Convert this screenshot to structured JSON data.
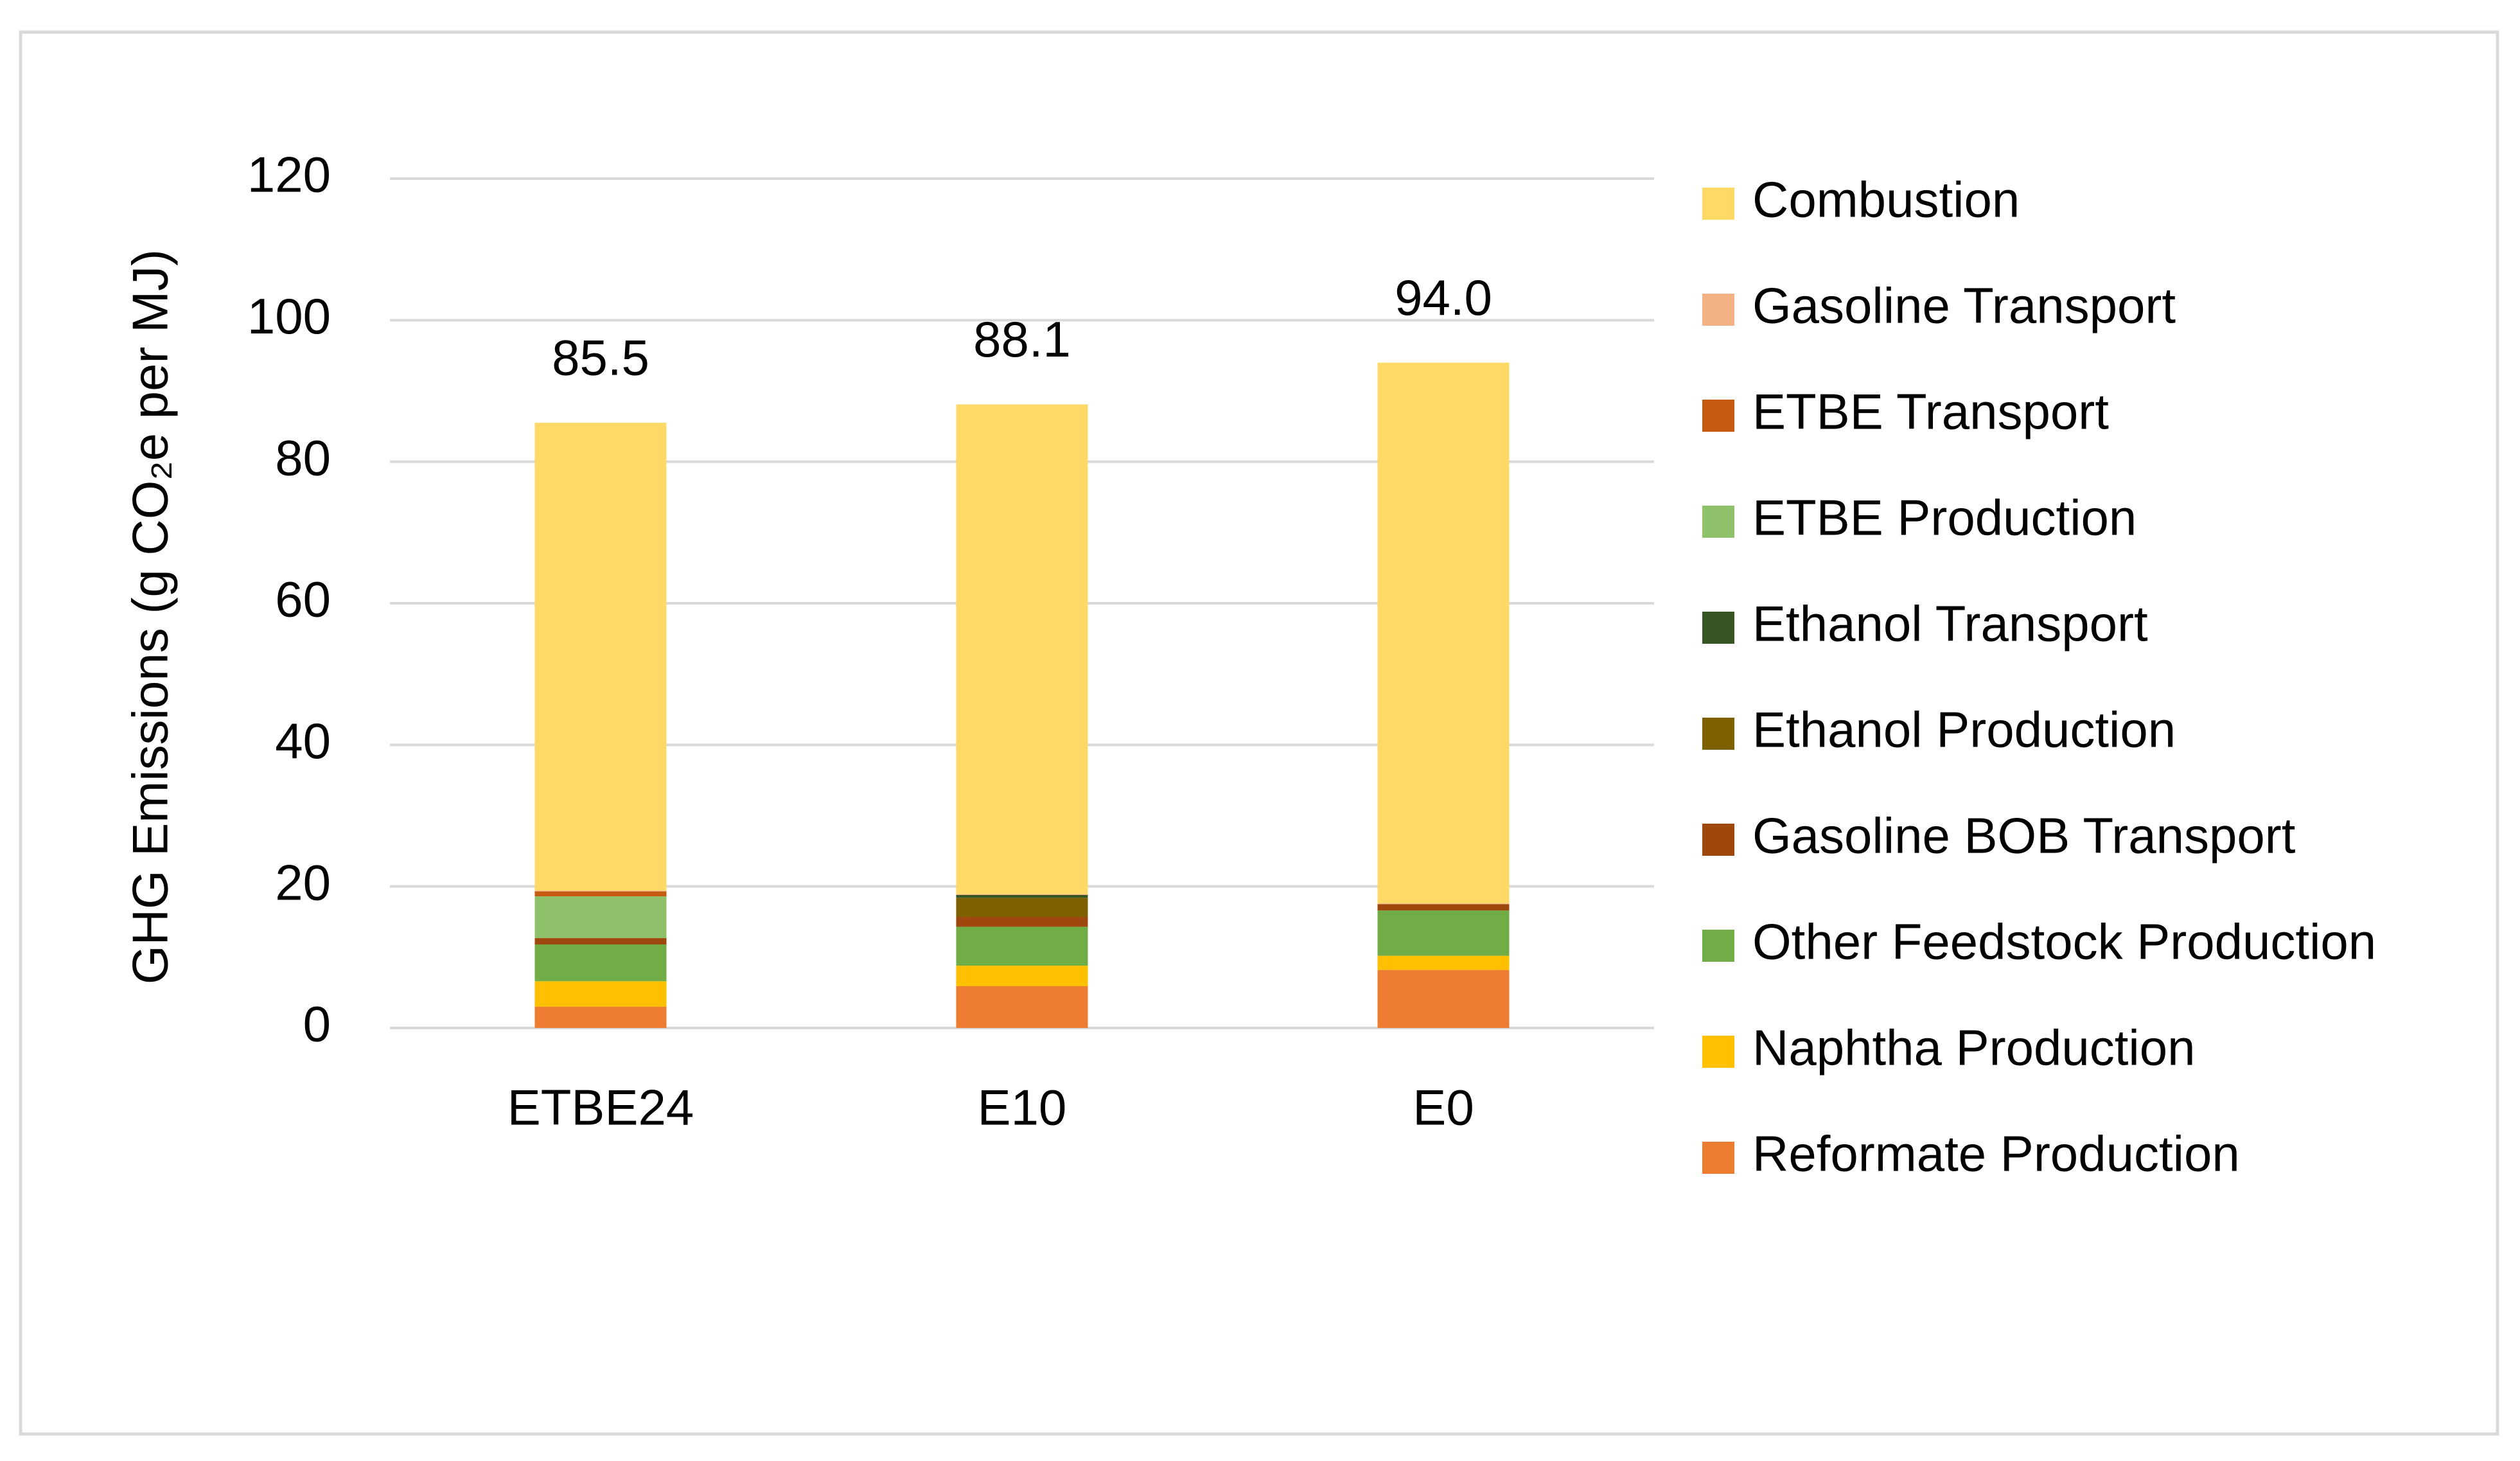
{
  "chart_data": {
    "type": "stacked_bar",
    "y_label": "GHG Emissions (g CO₂e per MJ)",
    "categories": [
      "ETBE24",
      "E10",
      "E0"
    ],
    "series": [
      {
        "name": "Reformate Production",
        "color": "#ED7D31",
        "values": [
          3.0,
          5.9,
          8.2
        ]
      },
      {
        "name": "Naphtha Production",
        "color": "#FFC000",
        "values": [
          3.6,
          2.9,
          2.0
        ]
      },
      {
        "name": "Other Feedstock Production",
        "color": "#70AD47",
        "values": [
          5.2,
          5.5,
          6.4
        ]
      },
      {
        "name": "Gasoline BOB Transport",
        "color": "#9E480E",
        "values": [
          0.9,
          1.4,
          0.9
        ]
      },
      {
        "name": "Ethanol Production",
        "color": "#7F6000",
        "values": [
          0,
          2.7,
          0
        ]
      },
      {
        "name": "Ethanol Transport",
        "color": "#375623",
        "values": [
          0,
          0.4,
          0
        ]
      },
      {
        "name": "ETBE Production",
        "color": "#8FC16A",
        "values": [
          5.9,
          0,
          0
        ]
      },
      {
        "name": "ETBE Transport",
        "color": "#C55A11",
        "values": [
          0.7,
          0,
          0
        ]
      },
      {
        "name": "Gasoline Transport",
        "color": "#F4B183",
        "values": [
          0.1,
          0.1,
          0.1
        ]
      },
      {
        "name": "Combustion",
        "color": "#FFD966",
        "values": [
          66.1,
          69.2,
          76.4
        ]
      }
    ],
    "totals": [
      85.5,
      88.1,
      94.0
    ],
    "value_labels": [
      "85.5",
      "88.1",
      "94.0"
    ],
    "ylim": [
      0,
      120
    ],
    "yticks": [
      0,
      20,
      40,
      60,
      80,
      100,
      120
    ],
    "grid": true,
    "legend": "right"
  }
}
